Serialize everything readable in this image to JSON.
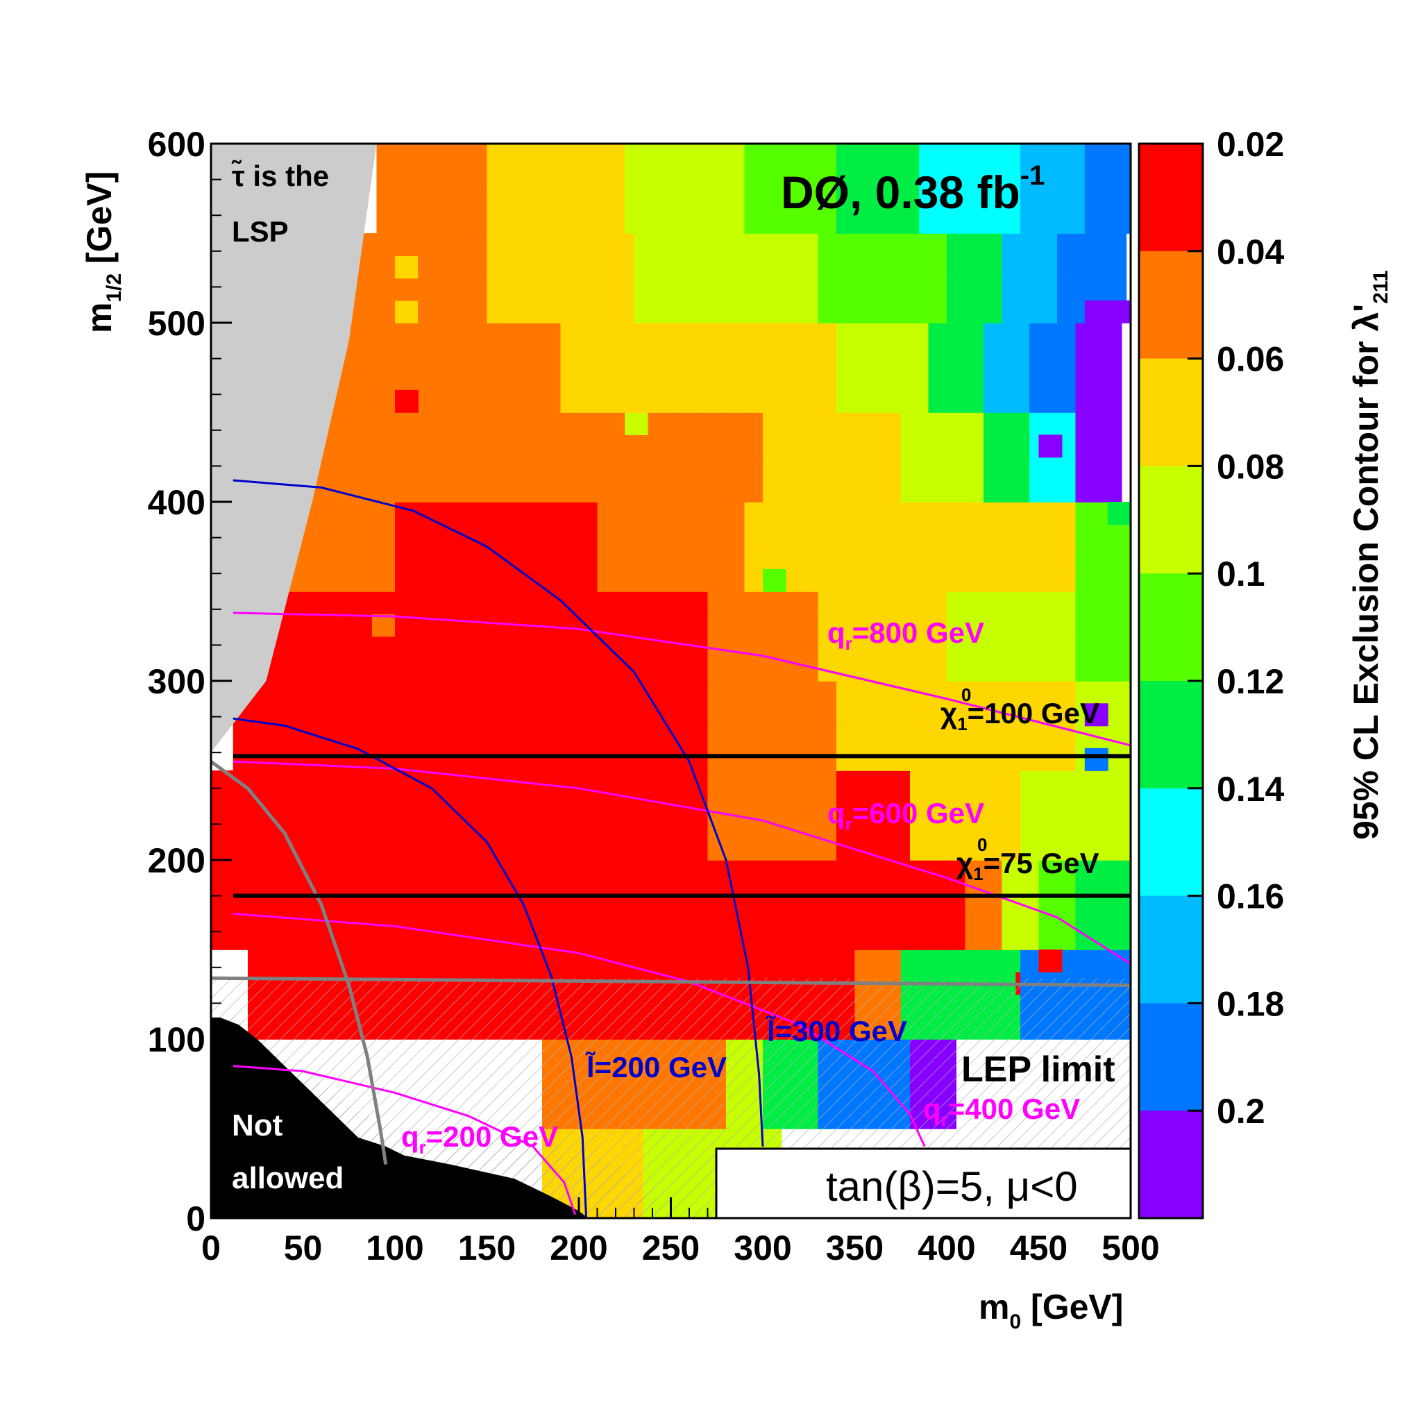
{
  "chart_data": {
    "type": "heatmap",
    "title": "DØ, 0.38 fb",
    "title_superscript": "-1",
    "xlabel": "m",
    "xlabel_sub": "0",
    "xlabel_unit": " [GeV]",
    "ylabel": "m",
    "ylabel_sub": "1/2",
    "ylabel_unit": " [GeV]",
    "xlim": [
      0,
      500
    ],
    "ylim": [
      0,
      600
    ],
    "x_ticks": [
      "0",
      "50",
      "100",
      "150",
      "200",
      "250",
      "300",
      "350",
      "400",
      "450",
      "500"
    ],
    "y_ticks": [
      "0",
      "100",
      "200",
      "300",
      "400",
      "500",
      "600"
    ],
    "colorbar": {
      "label": "95% CL Exclusion Contour for λ'",
      "label_sub": "211",
      "ticks": [
        "0.02",
        "0.04",
        "0.06",
        "0.08",
        "0.1",
        "0.12",
        "0.14",
        "0.16",
        "0.18",
        "0.2"
      ],
      "levels": [
        0.02,
        0.04,
        0.06,
        0.08,
        0.1,
        0.12,
        0.14,
        0.16,
        0.18,
        0.2,
        0.22
      ],
      "colors": [
        "#ff0000",
        "#ff7700",
        "#ffd700",
        "#c8ff00",
        "#55ff00",
        "#00ee44",
        "#00ffff",
        "#00bbff",
        "#0077ff",
        "#8800ff"
      ]
    },
    "cell_size": {
      "m0": 12.5,
      "m12": 12.5
    },
    "bands": [
      {
        "y": [
          0,
          50
        ],
        "ranges": [
          [
            180,
            235,
            2
          ],
          [
            235,
            300,
            3
          ]
        ]
      },
      {
        "y": [
          50,
          100
        ],
        "ranges": [
          [
            180,
            220,
            1
          ],
          [
            220,
            280,
            1
          ],
          [
            280,
            300,
            3
          ],
          [
            300,
            330,
            5
          ],
          [
            330,
            380,
            8
          ],
          [
            380,
            405,
            9
          ]
        ]
      },
      {
        "y": [
          100,
          150
        ],
        "ranges": [
          [
            20,
            350,
            0
          ],
          [
            350,
            375,
            1
          ],
          [
            375,
            440,
            5
          ],
          [
            440,
            470,
            8
          ],
          [
            470,
            500,
            8
          ]
        ]
      },
      {
        "y": [
          150,
          200
        ],
        "ranges": [
          [
            0,
            410,
            0
          ],
          [
            410,
            430,
            1
          ],
          [
            430,
            450,
            3
          ],
          [
            450,
            470,
            4
          ],
          [
            470,
            500,
            5
          ]
        ]
      },
      {
        "y": [
          200,
          250
        ],
        "ranges": [
          [
            0,
            270,
            0
          ],
          [
            270,
            340,
            1
          ],
          [
            340,
            380,
            0
          ],
          [
            380,
            440,
            2
          ],
          [
            440,
            500,
            3
          ]
        ]
      },
      {
        "y": [
          250,
          300
        ],
        "ranges": [
          [
            12,
            270,
            0
          ],
          [
            270,
            340,
            1
          ],
          [
            340,
            400,
            2
          ],
          [
            400,
            470,
            2
          ],
          [
            470,
            500,
            3
          ]
        ]
      },
      {
        "y": [
          300,
          350
        ],
        "ranges": [
          [
            25,
            270,
            0
          ],
          [
            270,
            330,
            1
          ],
          [
            330,
            400,
            2
          ],
          [
            400,
            470,
            3
          ],
          [
            470,
            500,
            4
          ]
        ]
      },
      {
        "y": [
          350,
          400
        ],
        "ranges": [
          [
            40,
            100,
            1
          ],
          [
            100,
            210,
            0
          ],
          [
            210,
            290,
            1
          ],
          [
            290,
            400,
            2
          ],
          [
            400,
            470,
            2
          ],
          [
            470,
            500,
            4
          ]
        ]
      },
      {
        "y": [
          400,
          450
        ],
        "ranges": [
          [
            50,
            300,
            1
          ],
          [
            300,
            375,
            2
          ],
          [
            375,
            420,
            3
          ],
          [
            420,
            445,
            5
          ],
          [
            445,
            470,
            6
          ],
          [
            470,
            490,
            9
          ]
        ]
      },
      {
        "y": [
          450,
          500
        ],
        "ranges": [
          [
            65,
            190,
            1
          ],
          [
            190,
            340,
            2
          ],
          [
            340,
            390,
            3
          ],
          [
            390,
            420,
            5
          ],
          [
            420,
            445,
            7
          ],
          [
            445,
            470,
            8
          ],
          [
            470,
            490,
            9
          ]
        ]
      },
      {
        "y": [
          500,
          550
        ],
        "ranges": [
          [
            75,
            150,
            1
          ],
          [
            150,
            230,
            2
          ],
          [
            230,
            330,
            3
          ],
          [
            330,
            400,
            4
          ],
          [
            400,
            430,
            5
          ],
          [
            430,
            460,
            7
          ],
          [
            460,
            490,
            8
          ]
        ]
      },
      {
        "y": [
          550,
          600
        ],
        "ranges": [
          [
            90,
            150,
            1
          ],
          [
            150,
            225,
            2
          ],
          [
            225,
            290,
            3
          ],
          [
            290,
            340,
            4
          ],
          [
            340,
            385,
            5
          ],
          [
            385,
            440,
            6
          ],
          [
            440,
            475,
            7
          ],
          [
            475,
            500,
            8
          ]
        ]
      }
    ],
    "patches": [
      [
        105,
        455,
        0
      ],
      [
        90,
        335,
        1
      ],
      [
        100,
        525,
        2
      ],
      [
        105,
        510,
        2
      ],
      [
        355,
        395,
        2
      ],
      [
        320,
        430,
        2
      ],
      [
        235,
        445,
        3
      ],
      [
        310,
        360,
        4
      ],
      [
        495,
        390,
        5
      ],
      [
        485,
        255,
        8
      ],
      [
        485,
        280,
        9
      ],
      [
        480,
        505,
        9
      ],
      [
        495,
        510,
        9
      ],
      [
        455,
        430,
        9
      ],
      [
        440,
        135,
        0
      ],
      [
        455,
        140,
        0
      ]
    ],
    "annotations": {
      "stau_lsp_line1": "τ̃ is the",
      "stau_lsp_line2": "LSP",
      "not_allowed_line1": "Not",
      "not_allowed_line2": "allowed",
      "lep_limit": "LEP limit",
      "tanbeta": "tan(β)=5, μ<0",
      "squark_800": "=800 GeV",
      "squark_600": "=600 GeV",
      "squark_400": "=400 GeV",
      "squark_200": "=200 GeV",
      "squark_symbol": "q",
      "squark_sub": "r",
      "neutralino_100": "=100 GeV",
      "neutralino_75": "=75 GeV",
      "neutralino_symbol": "χ",
      "neutralino_sub": "1",
      "neutralino_sup": "0",
      "slepton_300": "l̃=300 GeV",
      "slepton_200": "l̃=200 GeV"
    },
    "neutralino_lines_m12": [
      258,
      180
    ],
    "lep_limit_m12": 134,
    "contour_colors": {
      "squark": "#ff00ff",
      "slepton": "#0000cc",
      "neutralino": "#000000",
      "lep": "#808080",
      "lsp": "#cccccc"
    }
  }
}
